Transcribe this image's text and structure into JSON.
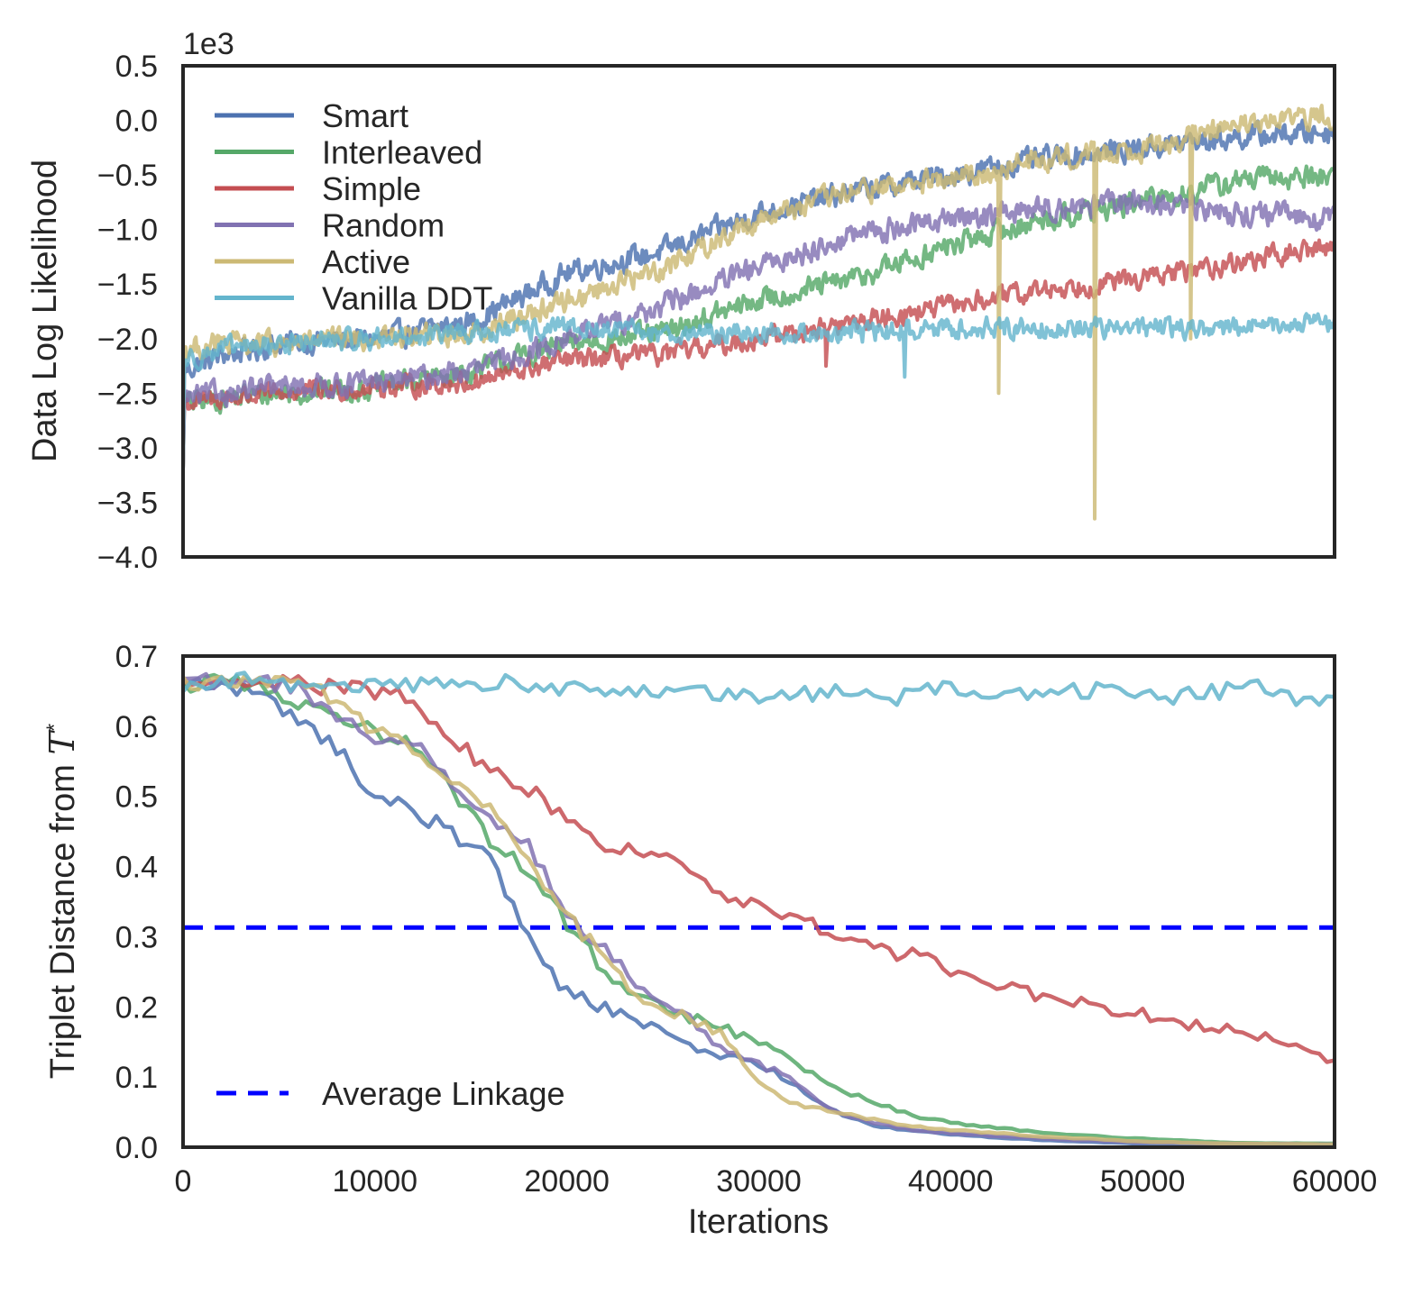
{
  "chart_data": [
    {
      "type": "line",
      "ylabel": "Data Log Likelihood",
      "xlabel": "",
      "offset_label": "1e3",
      "xlim": [
        0,
        60000
      ],
      "ylim": [
        -4.0,
        0.5
      ],
      "yticks": [
        0.5,
        0.0,
        -0.5,
        -1.0,
        -1.5,
        -2.0,
        -2.5,
        -3.0,
        -3.5,
        -4.0
      ],
      "ytick_labels": [
        "0.5",
        "0.0",
        "−0.5",
        "−1.0",
        "−1.5",
        "−2.0",
        "−2.5",
        "−3.0",
        "−3.5",
        "−4.0"
      ],
      "legend_position": "upper-left",
      "noise_note": "series are noisy; values below are the approximate trend (in units of 1e3)",
      "series": [
        {
          "name": "Smart",
          "color": "#4c72b0",
          "noise": 0.09,
          "x": [
            0,
            2000,
            5000,
            10000,
            15000,
            20000,
            25000,
            30000,
            35000,
            40000,
            45000,
            50000,
            55000,
            60000
          ],
          "y": [
            -2.3,
            -2.15,
            -2.05,
            -2.0,
            -1.85,
            -1.4,
            -1.2,
            -0.85,
            -0.65,
            -0.5,
            -0.35,
            -0.25,
            -0.15,
            -0.1
          ]
        },
        {
          "name": "Interleaved",
          "color": "#55a868",
          "noise": 0.09,
          "x": [
            0,
            2000,
            5000,
            10000,
            15000,
            20000,
            25000,
            30000,
            35000,
            40000,
            45000,
            50000,
            55000,
            60000
          ],
          "y": [
            -2.6,
            -2.55,
            -2.5,
            -2.45,
            -2.3,
            -2.05,
            -1.95,
            -1.65,
            -1.45,
            -1.15,
            -0.9,
            -0.75,
            -0.55,
            -0.5
          ]
        },
        {
          "name": "Simple",
          "color": "#c44e52",
          "noise": 0.08,
          "x": [
            0,
            2000,
            5000,
            10000,
            15000,
            20000,
            25000,
            30000,
            35000,
            40000,
            45000,
            50000,
            55000,
            60000
          ],
          "y": [
            -2.6,
            -2.55,
            -2.5,
            -2.45,
            -2.4,
            -2.2,
            -2.15,
            -2.0,
            -1.85,
            -1.7,
            -1.55,
            -1.45,
            -1.3,
            -1.15
          ]
        },
        {
          "name": "Random",
          "color": "#8172b2",
          "noise": 0.09,
          "x": [
            0,
            2000,
            5000,
            10000,
            15000,
            20000,
            25000,
            30000,
            35000,
            40000,
            45000,
            50000,
            55000,
            60000
          ],
          "y": [
            -2.55,
            -2.5,
            -2.45,
            -2.4,
            -2.3,
            -2.0,
            -1.7,
            -1.35,
            -1.05,
            -0.9,
            -0.8,
            -0.75,
            -0.85,
            -0.9
          ]
        },
        {
          "name": "Active",
          "color": "#ccb974",
          "noise": 0.09,
          "x": [
            0,
            2000,
            5000,
            10000,
            15000,
            20000,
            25000,
            30000,
            35000,
            40000,
            45000,
            50000,
            55000,
            60000
          ],
          "y": [
            -2.1,
            -2.05,
            -2.05,
            -2.0,
            -1.95,
            -1.65,
            -1.35,
            -0.9,
            -0.65,
            -0.55,
            -0.35,
            -0.25,
            -0.05,
            0.05
          ]
        },
        {
          "name": "Vanilla DDT",
          "color": "#64b5cd",
          "noise": 0.08,
          "x": [
            0,
            2000,
            5000,
            10000,
            15000,
            20000,
            25000,
            30000,
            35000,
            40000,
            45000,
            50000,
            55000,
            60000
          ],
          "y": [
            -2.2,
            -2.1,
            -2.05,
            -2.0,
            -1.95,
            -1.9,
            -1.95,
            -1.95,
            -1.95,
            -1.9,
            -1.9,
            -1.9,
            -1.9,
            -1.85
          ]
        }
      ],
      "spikes": [
        {
          "series": "Active",
          "x": 42500,
          "y": -2.5
        },
        {
          "series": "Active",
          "x": 47500,
          "y": -3.65
        },
        {
          "series": "Active",
          "x": 52500,
          "y": -2.0
        },
        {
          "series": "Vanilla DDT",
          "x": 37600,
          "y": -2.35
        },
        {
          "series": "Simple",
          "x": 33500,
          "y": -2.25
        }
      ]
    },
    {
      "type": "line",
      "ylabel_prefix": "Triplet Distance from ",
      "ylabel_symbol": "T",
      "ylabel_superscript": "*",
      "xlabel": "Iterations",
      "xlim": [
        0,
        60000
      ],
      "ylim": [
        0.0,
        0.7
      ],
      "xticks": [
        0,
        10000,
        20000,
        30000,
        40000,
        50000,
        60000
      ],
      "xtick_labels": [
        "0",
        "10000",
        "20000",
        "30000",
        "40000",
        "50000",
        "60000"
      ],
      "yticks": [
        0.7,
        0.6,
        0.5,
        0.4,
        0.3,
        0.2,
        0.1,
        0.0
      ],
      "ytick_labels": [
        "0.7",
        "0.6",
        "0.5",
        "0.4",
        "0.3",
        "0.2",
        "0.1",
        "0.0"
      ],
      "legend_position": "lower-left",
      "reference_line": {
        "name": "Average Linkage",
        "y": 0.313,
        "color": "#0000ff",
        "style": "dashed"
      },
      "series": [
        {
          "name": "Smart",
          "color": "#4c72b0",
          "x": [
            0,
            2000,
            4000,
            6000,
            8000,
            10000,
            12000,
            14000,
            16000,
            18000,
            20000,
            22000,
            24000,
            26000,
            28000,
            30000,
            32000,
            34000,
            36000,
            40000,
            45000,
            50000,
            55000,
            60000
          ],
          "y": [
            0.66,
            0.66,
            0.645,
            0.61,
            0.57,
            0.5,
            0.48,
            0.45,
            0.41,
            0.3,
            0.22,
            0.2,
            0.175,
            0.15,
            0.13,
            0.12,
            0.085,
            0.05,
            0.03,
            0.018,
            0.01,
            0.005,
            0.004,
            0.004
          ]
        },
        {
          "name": "Interleaved",
          "color": "#55a868",
          "x": [
            0,
            2000,
            4000,
            6000,
            8000,
            10000,
            12000,
            14000,
            16000,
            18000,
            20000,
            22000,
            24000,
            26000,
            28000,
            30000,
            32000,
            34000,
            36000,
            38000,
            40000,
            45000,
            50000,
            55000,
            60000
          ],
          "y": [
            0.66,
            0.665,
            0.66,
            0.635,
            0.62,
            0.59,
            0.57,
            0.51,
            0.44,
            0.39,
            0.32,
            0.25,
            0.21,
            0.19,
            0.17,
            0.15,
            0.12,
            0.085,
            0.065,
            0.045,
            0.035,
            0.02,
            0.012,
            0.006,
            0.005
          ]
        },
        {
          "name": "Simple",
          "color": "#c44e52",
          "x": [
            0,
            2000,
            4000,
            6000,
            8000,
            10000,
            12000,
            14000,
            16000,
            18000,
            20000,
            22000,
            24000,
            26000,
            28000,
            30000,
            32000,
            34000,
            36000,
            38000,
            40000,
            42000,
            44000,
            46000,
            48000,
            50000,
            52000,
            54000,
            56000,
            58000,
            60000
          ],
          "y": [
            0.66,
            0.665,
            0.66,
            0.66,
            0.655,
            0.65,
            0.64,
            0.58,
            0.54,
            0.51,
            0.47,
            0.43,
            0.42,
            0.4,
            0.36,
            0.35,
            0.32,
            0.305,
            0.28,
            0.275,
            0.25,
            0.235,
            0.22,
            0.21,
            0.195,
            0.19,
            0.175,
            0.17,
            0.16,
            0.15,
            0.12
          ]
        },
        {
          "name": "Random",
          "color": "#8172b2",
          "x": [
            0,
            2000,
            4000,
            6000,
            8000,
            10000,
            12000,
            14000,
            16000,
            18000,
            20000,
            22000,
            24000,
            26000,
            28000,
            30000,
            32000,
            34000,
            36000,
            38000,
            40000,
            45000,
            50000,
            55000,
            60000
          ],
          "y": [
            0.66,
            0.665,
            0.665,
            0.655,
            0.62,
            0.58,
            0.58,
            0.52,
            0.47,
            0.43,
            0.33,
            0.28,
            0.22,
            0.19,
            0.14,
            0.12,
            0.09,
            0.05,
            0.035,
            0.025,
            0.02,
            0.012,
            0.007,
            0.005,
            0.004
          ]
        },
        {
          "name": "Active",
          "color": "#ccb974",
          "x": [
            0,
            2000,
            4000,
            6000,
            8000,
            10000,
            12000,
            14000,
            16000,
            18000,
            20000,
            22000,
            24000,
            26000,
            28000,
            30000,
            32000,
            34000,
            36000,
            38000,
            40000,
            45000,
            50000,
            55000,
            60000
          ],
          "y": [
            0.66,
            0.665,
            0.665,
            0.66,
            0.64,
            0.59,
            0.57,
            0.53,
            0.48,
            0.41,
            0.33,
            0.27,
            0.21,
            0.19,
            0.16,
            0.09,
            0.06,
            0.05,
            0.04,
            0.03,
            0.025,
            0.015,
            0.008,
            0.005,
            0.004
          ]
        },
        {
          "name": "Vanilla DDT",
          "color": "#64b5cd",
          "x": [
            0,
            3000,
            6000,
            9000,
            12000,
            15000,
            16500,
            18000,
            21000,
            24000,
            27000,
            30000,
            33000,
            36000,
            37000,
            38500,
            42000,
            45000,
            48000,
            51000,
            54000,
            55500,
            57000,
            58500,
            60000
          ],
          "y": [
            0.66,
            0.665,
            0.66,
            0.655,
            0.66,
            0.655,
            0.665,
            0.655,
            0.65,
            0.65,
            0.645,
            0.645,
            0.645,
            0.65,
            0.64,
            0.655,
            0.645,
            0.65,
            0.65,
            0.64,
            0.65,
            0.66,
            0.64,
            0.64,
            0.645
          ]
        }
      ]
    }
  ]
}
